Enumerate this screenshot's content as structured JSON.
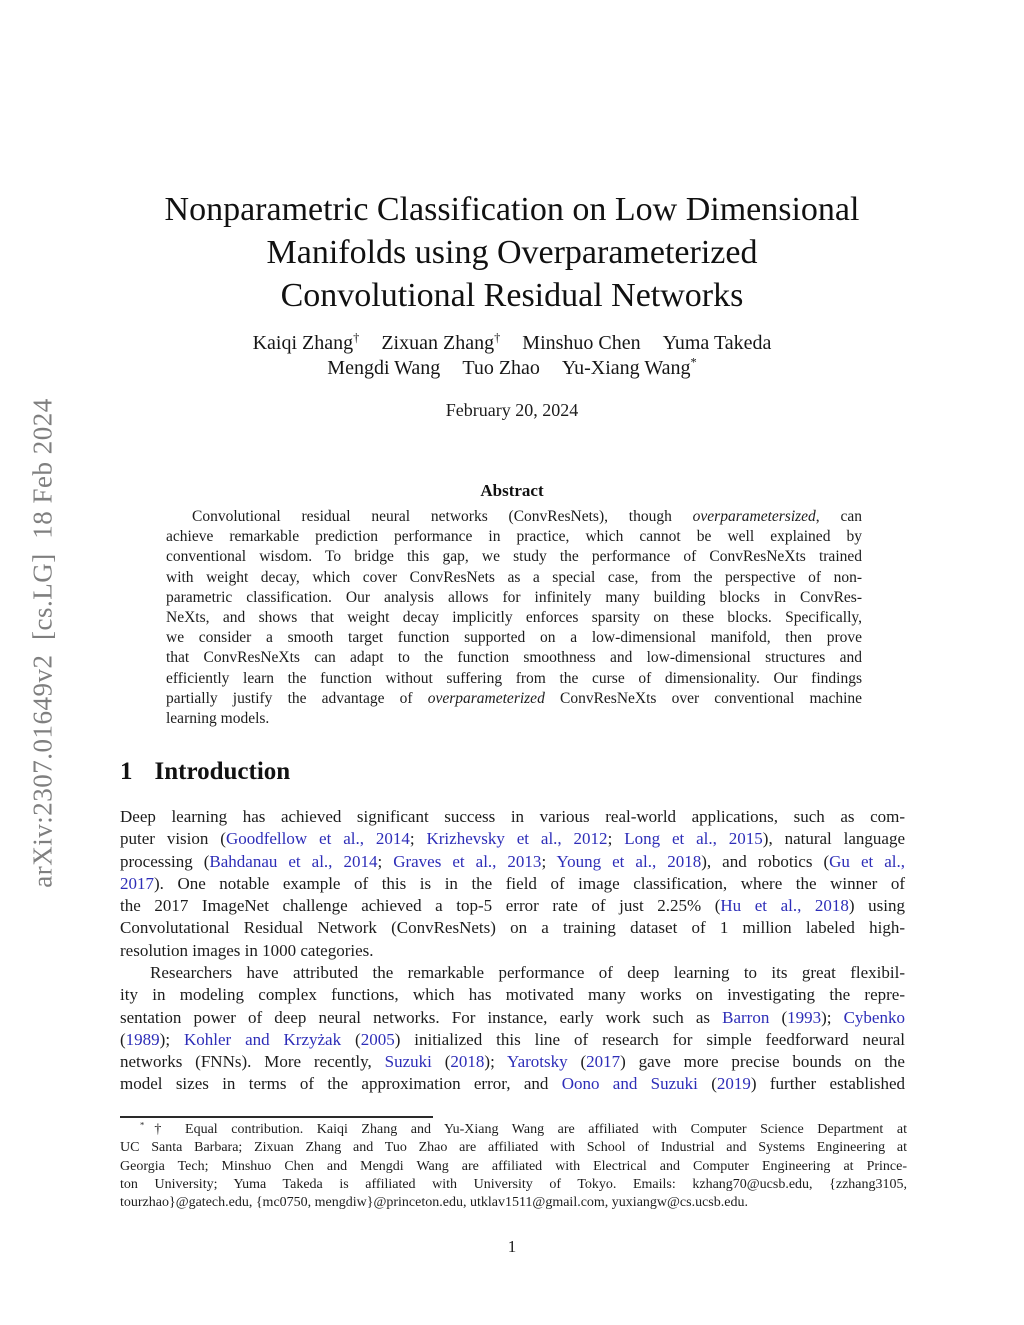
{
  "colors": {
    "link": "#2d2db8",
    "arxiv_stamp": "#7f7f7f",
    "text": "#1c1c1c"
  },
  "page": {
    "number": "1"
  },
  "sidebar": {
    "text": "arXiv:2307.01649v2  [cs.LG]  18 Feb 2024"
  },
  "title": {
    "lines": [
      {
        "last": true,
        "seg": [
          {
            "x": "Nonparametric Classification on Low Dimensional"
          }
        ]
      },
      {
        "last": true,
        "seg": [
          {
            "x": "Manifolds using Overparameterized"
          }
        ]
      },
      {
        "last": true,
        "seg": [
          {
            "x": "Convolutional Residual Networks"
          }
        ]
      }
    ]
  },
  "authors": {
    "lines": [
      {
        "last": true,
        "seg": [
          {
            "x": "Kaiqi Zhang"
          },
          {
            "x": "†",
            "sup": true
          },
          {
            "gap": true
          },
          {
            "x": "Zixuan Zhang"
          },
          {
            "x": "†",
            "sup": true
          },
          {
            "gap": true
          },
          {
            "x": "Minshuo Chen"
          },
          {
            "gap": true
          },
          {
            "x": "Yuma Takeda"
          }
        ]
      },
      {
        "last": true,
        "seg": [
          {
            "x": "Mengdi Wang"
          },
          {
            "gap": true
          },
          {
            "x": "Tuo Zhao"
          },
          {
            "gap": true
          },
          {
            "x": "Yu-Xiang Wang"
          },
          {
            "x": "*",
            "sup": true
          }
        ]
      }
    ]
  },
  "date": "February 20, 2024",
  "abstract": {
    "heading": "Abstract",
    "lines": [
      {
        "indent": 26,
        "seg": [
          {
            "x": "Convolutional residual neural networks (ConvResNets), though "
          },
          {
            "x": "overparametersized",
            "i": true
          },
          {
            "x": ", can"
          }
        ]
      },
      {
        "seg": [
          {
            "x": "achieve remarkable prediction performance in practice, which cannot be well explained by"
          }
        ]
      },
      {
        "seg": [
          {
            "x": "conventional wisdom. To bridge this gap, we study the performance of ConvResNeXts trained"
          }
        ]
      },
      {
        "seg": [
          {
            "x": "with weight decay, which cover ConvResNets as a special case, from the perspective of non-"
          }
        ]
      },
      {
        "seg": [
          {
            "x": "parametric classification. Our analysis allows for infinitely many building blocks in ConvRes-"
          }
        ]
      },
      {
        "seg": [
          {
            "x": "NeXts, and shows that weight decay implicitly enforces sparsity on these blocks. Specifically,"
          }
        ]
      },
      {
        "seg": [
          {
            "x": "we consider a smooth target function supported on a low-dimensional manifold, then prove"
          }
        ]
      },
      {
        "seg": [
          {
            "x": "that ConvResNeXts can adapt to the function smoothness and low-dimensional structures and"
          }
        ]
      },
      {
        "seg": [
          {
            "x": "efficiently learn the function without suffering from the curse of dimensionality. Our findings"
          }
        ]
      },
      {
        "seg": [
          {
            "x": "partially justify the advantage of "
          },
          {
            "x": "overparameterized",
            "i": true
          },
          {
            "x": " ConvResNeXts over conventional machine"
          }
        ]
      },
      {
        "last": true,
        "seg": [
          {
            "x": "learning models."
          }
        ]
      }
    ]
  },
  "sections": {
    "intro": {
      "number": "1",
      "title": "Introduction"
    }
  },
  "intro": {
    "p1": {
      "lines": [
        {
          "seg": [
            {
              "x": "Deep learning has achieved significant success in various real-world applications, such as com-"
            }
          ]
        },
        {
          "seg": [
            {
              "x": "puter vision ("
            },
            {
              "x": "Goodfellow et al., 2014",
              "c": "link"
            },
            {
              "x": "; "
            },
            {
              "x": "Krizhevsky et al., 2012",
              "c": "link"
            },
            {
              "x": "; "
            },
            {
              "x": "Long et al., 2015",
              "c": "link"
            },
            {
              "x": "), natural language"
            }
          ]
        },
        {
          "seg": [
            {
              "x": "processing ("
            },
            {
              "x": "Bahdanau et al., 2014",
              "c": "link"
            },
            {
              "x": "; "
            },
            {
              "x": "Graves et al., 2013",
              "c": "link"
            },
            {
              "x": "; "
            },
            {
              "x": "Young et al., 2018",
              "c": "link"
            },
            {
              "x": "), and robotics ("
            },
            {
              "x": "Gu et al.,",
              "c": "link"
            }
          ]
        },
        {
          "seg": [
            {
              "x": "2017",
              "c": "link"
            },
            {
              "x": "). One notable example of this is in the field of image classification, where the winner of"
            }
          ]
        },
        {
          "seg": [
            {
              "x": "the 2017 ImageNet challenge achieved a top-5 error rate of just 2.25% ("
            },
            {
              "x": "Hu et al., 2018",
              "c": "link"
            },
            {
              "x": ") using"
            }
          ]
        },
        {
          "seg": [
            {
              "x": "Convolutational Residual Network (ConvResNets) on a training dataset of 1 million labeled high-"
            }
          ]
        },
        {
          "last": true,
          "seg": [
            {
              "x": "resolution images in 1000 categories."
            }
          ]
        }
      ]
    },
    "p2": {
      "lines": [
        {
          "indent": 30,
          "seg": [
            {
              "x": "Researchers have attributed the remarkable performance of deep learning to its great flexibil-"
            }
          ]
        },
        {
          "seg": [
            {
              "x": "ity in modeling complex functions, which has motivated many works on investigating the repre-"
            }
          ]
        },
        {
          "seg": [
            {
              "x": "sentation power of deep neural networks. For instance, early work such as "
            },
            {
              "x": "Barron",
              "c": "link"
            },
            {
              "x": " ("
            },
            {
              "x": "1993",
              "c": "link"
            },
            {
              "x": "); "
            },
            {
              "x": "Cybenko",
              "c": "link"
            }
          ]
        },
        {
          "seg": [
            {
              "x": "("
            },
            {
              "x": "1989",
              "c": "link"
            },
            {
              "x": "); "
            },
            {
              "x": "Kohler and Krzyżak",
              "c": "link"
            },
            {
              "x": " ("
            },
            {
              "x": "2005",
              "c": "link"
            },
            {
              "x": ") initialized this line of research for simple feedforward neural"
            }
          ]
        },
        {
          "seg": [
            {
              "x": "networks (FNNs). More recently, "
            },
            {
              "x": "Suzuki",
              "c": "link"
            },
            {
              "x": " ("
            },
            {
              "x": "2018",
              "c": "link"
            },
            {
              "x": "); "
            },
            {
              "x": "Yarotsky",
              "c": "link"
            },
            {
              "x": " ("
            },
            {
              "x": "2017",
              "c": "link"
            },
            {
              "x": ") gave more precise bounds on the"
            }
          ]
        },
        {
          "seg": [
            {
              "x": "model sizes in terms of the approximation error, and "
            },
            {
              "x": "Oono and Suzuki",
              "c": "link"
            },
            {
              "x": " ("
            },
            {
              "x": "2019",
              "c": "link"
            },
            {
              "x": ") further established"
            }
          ]
        }
      ]
    }
  },
  "footnote": {
    "lines": [
      {
        "indent": 20,
        "seg": [
          {
            "x": "*",
            "sup": true
          },
          {
            "x": "† Equal contribution.  Kaiqi Zhang and Yu-Xiang Wang are affiliated with Computer Science Department at"
          }
        ]
      },
      {
        "seg": [
          {
            "x": "UC Santa Barbara; Zixuan Zhang and Tuo Zhao are affiliated with School of Industrial and Systems Engineering at"
          }
        ]
      },
      {
        "seg": [
          {
            "x": "Georgia Tech; Minshuo Chen and Mengdi Wang are affiliated with Electrical and Computer Engineering at Prince-"
          }
        ]
      },
      {
        "seg": [
          {
            "x": "ton University; Yuma Takeda is affiliated with University of Tokyo.  Emails: kzhang70@ucsb.edu, {zzhang3105,"
          }
        ]
      },
      {
        "last": true,
        "seg": [
          {
            "x": "tourzhao}@gatech.edu, {mc0750, mengdiw}@princeton.edu, utklav1511@gmail.com, yuxiangw@cs.ucsb.edu."
          }
        ]
      }
    ]
  }
}
